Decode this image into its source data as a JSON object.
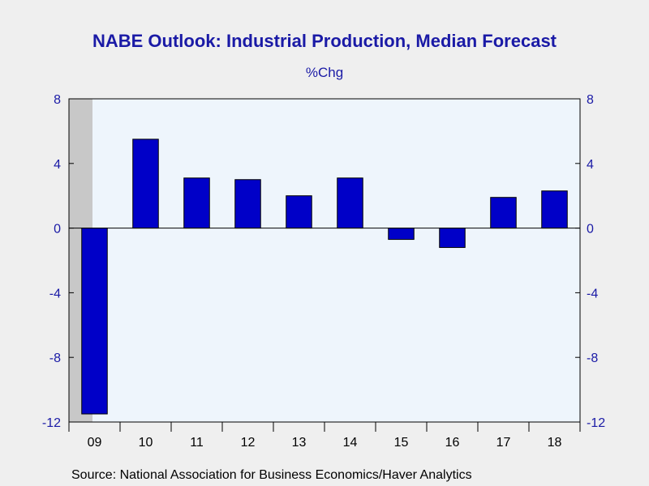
{
  "chart_data": {
    "type": "bar",
    "title": "NABE Outlook: Industrial Production, Median Forecast",
    "subtitle": "%Chg",
    "source": "Source:  National Association for Business Economics/Haver Analytics",
    "categories": [
      "09",
      "10",
      "11",
      "12",
      "13",
      "14",
      "15",
      "16",
      "17",
      "18"
    ],
    "series": [
      {
        "values": [
          -11.5,
          5.5,
          3.1,
          3.0,
          2.0,
          3.1,
          -0.7,
          -1.2,
          1.9,
          2.3
        ]
      }
    ],
    "ylim": [
      -12,
      8
    ],
    "yticks": [
      8,
      4,
      0,
      -4,
      -8,
      -12
    ],
    "yticks_right": true,
    "recession_shading": [
      "09"
    ],
    "grid": false,
    "colors": {
      "bar": "#0000c8",
      "plot_bg": "#eef5fc",
      "shading": "#c8c8c8",
      "text": "#1a1aa6"
    }
  }
}
